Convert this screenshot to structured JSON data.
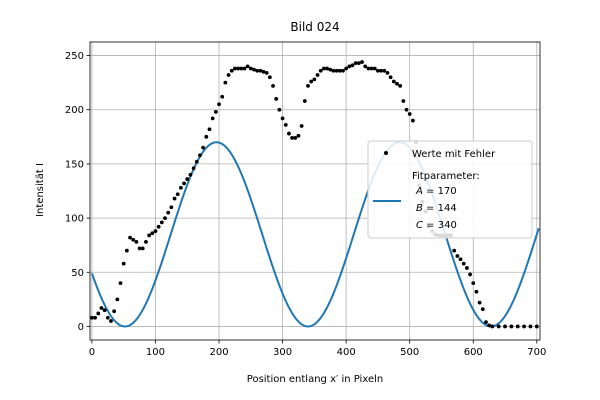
{
  "chart_data": {
    "type": "scatter",
    "title": "Bild 024",
    "xlabel": "Position entlang x′ in Pixeln",
    "ylabel": "Intensität I",
    "xlim": [
      -3,
      705
    ],
    "ylim": [
      -12.5,
      262.5
    ],
    "x_ticks": [
      0,
      100,
      200,
      300,
      400,
      500,
      600,
      700
    ],
    "y_ticks": [
      0,
      50,
      100,
      150,
      200,
      250
    ],
    "grid": true,
    "legend_position": "right",
    "colors": {
      "points": "#000000",
      "fit": "#1f77b4"
    },
    "series": [
      {
        "name": "Werte mit Fehler",
        "kind": "scatter",
        "points": [
          [
            0,
            8
          ],
          [
            5,
            8
          ],
          [
            10,
            12
          ],
          [
            15,
            17
          ],
          [
            20,
            15
          ],
          [
            25,
            8
          ],
          [
            30,
            5
          ],
          [
            35,
            14
          ],
          [
            40,
            25
          ],
          [
            45,
            40
          ],
          [
            50,
            58
          ],
          [
            55,
            70
          ],
          [
            60,
            82
          ],
          [
            65,
            80
          ],
          [
            70,
            78
          ],
          [
            75,
            72
          ],
          [
            80,
            72
          ],
          [
            85,
            78
          ],
          [
            90,
            84
          ],
          [
            95,
            86
          ],
          [
            100,
            88
          ],
          [
            105,
            92
          ],
          [
            110,
            96
          ],
          [
            115,
            100
          ],
          [
            120,
            105
          ],
          [
            125,
            110
          ],
          [
            130,
            118
          ],
          [
            135,
            122
          ],
          [
            140,
            128
          ],
          [
            145,
            132
          ],
          [
            150,
            136
          ],
          [
            155,
            140
          ],
          [
            160,
            146
          ],
          [
            165,
            152
          ],
          [
            170,
            158
          ],
          [
            175,
            165
          ],
          [
            180,
            175
          ],
          [
            185,
            182
          ],
          [
            190,
            192
          ],
          [
            195,
            198
          ],
          [
            200,
            205
          ],
          [
            205,
            212
          ],
          [
            210,
            225
          ],
          [
            215,
            232
          ],
          [
            220,
            236
          ],
          [
            225,
            238
          ],
          [
            230,
            238
          ],
          [
            235,
            238
          ],
          [
            240,
            238
          ],
          [
            245,
            240
          ],
          [
            250,
            238
          ],
          [
            255,
            237
          ],
          [
            260,
            236
          ],
          [
            265,
            236
          ],
          [
            270,
            235
          ],
          [
            275,
            234
          ],
          [
            280,
            230
          ],
          [
            285,
            222
          ],
          [
            290,
            210
          ],
          [
            295,
            200
          ],
          [
            300,
            192
          ],
          [
            305,
            186
          ],
          [
            310,
            178
          ],
          [
            315,
            174
          ],
          [
            320,
            174
          ],
          [
            325,
            176
          ],
          [
            330,
            185
          ],
          [
            335,
            208
          ],
          [
            340,
            222
          ],
          [
            345,
            226
          ],
          [
            350,
            228
          ],
          [
            355,
            232
          ],
          [
            360,
            236
          ],
          [
            365,
            238
          ],
          [
            370,
            238
          ],
          [
            375,
            237
          ],
          [
            380,
            236
          ],
          [
            385,
            236
          ],
          [
            390,
            236
          ],
          [
            395,
            236
          ],
          [
            400,
            238
          ],
          [
            405,
            240
          ],
          [
            410,
            241
          ],
          [
            415,
            243
          ],
          [
            420,
            243
          ],
          [
            425,
            244
          ],
          [
            430,
            240
          ],
          [
            435,
            238
          ],
          [
            440,
            238
          ],
          [
            445,
            238
          ],
          [
            450,
            236
          ],
          [
            455,
            236
          ],
          [
            460,
            236
          ],
          [
            465,
            234
          ],
          [
            470,
            230
          ],
          [
            475,
            226
          ],
          [
            480,
            224
          ],
          [
            485,
            222
          ],
          [
            490,
            208
          ],
          [
            495,
            200
          ],
          [
            500,
            196
          ],
          [
            505,
            190
          ],
          [
            510,
            170
          ],
          [
            515,
            130
          ],
          [
            520,
            115
          ],
          [
            525,
            106
          ],
          [
            530,
            92
          ],
          [
            535,
            88
          ],
          [
            540,
            85
          ],
          [
            545,
            84
          ],
          [
            550,
            84
          ],
          [
            555,
            84
          ],
          [
            560,
            84
          ],
          [
            565,
            84
          ],
          [
            570,
            70
          ],
          [
            575,
            65
          ],
          [
            580,
            62
          ],
          [
            585,
            58
          ],
          [
            590,
            54
          ],
          [
            595,
            48
          ],
          [
            600,
            40
          ],
          [
            605,
            32
          ],
          [
            610,
            22
          ],
          [
            615,
            16
          ],
          [
            620,
            4
          ],
          [
            625,
            1
          ],
          [
            630,
            0
          ],
          [
            640,
            0
          ],
          [
            650,
            0
          ],
          [
            660,
            0
          ],
          [
            670,
            0
          ],
          [
            680,
            0
          ],
          [
            690,
            0
          ],
          [
            700,
            0
          ]
        ]
      },
      {
        "name": "Fitparameter:",
        "kind": "line",
        "params": {
          "A": 170,
          "B": 144,
          "C": 340
        }
      }
    ],
    "legend": {
      "points_label": "Werte mit Fehler",
      "fit_header": "Fitparameter:",
      "fit_A_sym": "A",
      "fit_A_val": " = 170",
      "fit_B_sym": "B",
      "fit_B_val": " = 144",
      "fit_C_sym": "C",
      "fit_C_val": " = 340"
    }
  }
}
